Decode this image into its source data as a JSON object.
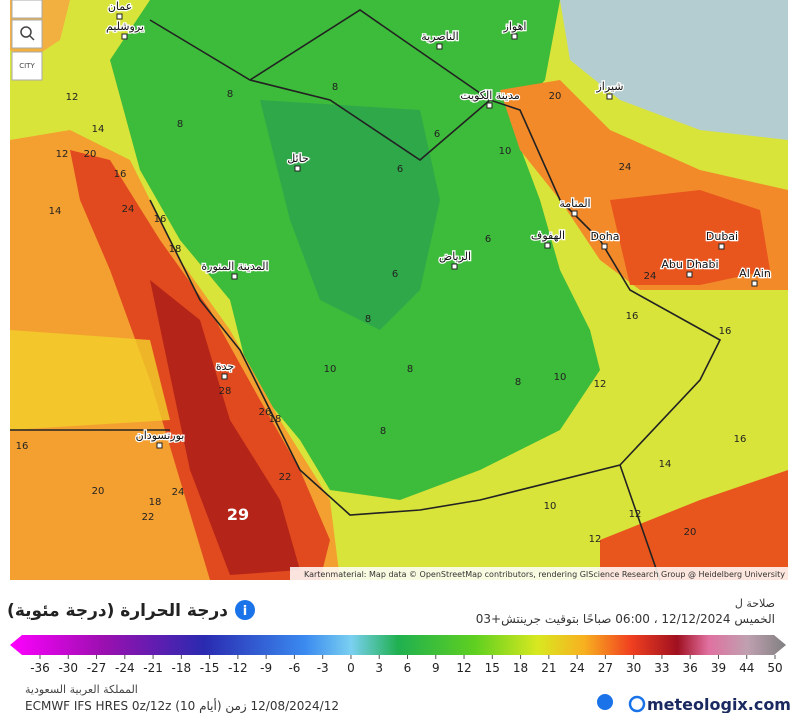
{
  "controls": {
    "city": "CITY"
  },
  "map": {
    "cities": [
      "عمان",
      "يروشليم",
      "الناصرية",
      "اهواز",
      "مدينة الكويت",
      "شيراز",
      "حائل",
      "المنامة",
      "الهفوف",
      "Doha",
      "Dubai",
      "الرياض",
      "المدينة المنورة",
      "Abu Dhabi",
      "Al Ain",
      "جدة",
      "بورتسودان"
    ],
    "values": [
      12,
      14,
      12,
      20,
      16,
      14,
      24,
      18,
      16,
      8,
      8,
      8,
      6,
      10,
      6,
      6,
      6,
      8,
      10,
      8,
      8,
      10,
      12,
      8,
      20,
      24,
      24,
      16,
      16,
      16,
      14,
      12,
      10,
      12,
      20,
      28,
      26,
      18,
      22,
      24,
      18,
      20,
      22,
      16,
      29
    ],
    "attribution": "Kartenmaterial: Map data © OpenStreetMap contributors, rendering GIScience Research Group @ Heidelberg University"
  },
  "legend": {
    "title": "درجة الحرارة (درجة مئوية)",
    "valid_label": "صلاحة ل",
    "valid_time": "الخميس 12/12/2024 ، 06:00 صباحًا بتوقيت جرينتش+03",
    "ticks": [
      -36,
      -30,
      -27,
      -24,
      -21,
      -18,
      -15,
      -12,
      -9,
      -6,
      -3,
      0,
      3,
      6,
      9,
      12,
      15,
      18,
      21,
      24,
      27,
      30,
      33,
      36,
      39,
      44,
      50
    ]
  },
  "footer": {
    "region": "المملكة العربية السعودية",
    "model": "ECMWF IFS HRES 0z/12z (10 أيام) 12/08/2024/12 زمن",
    "brand": "meteologix.com"
  }
}
